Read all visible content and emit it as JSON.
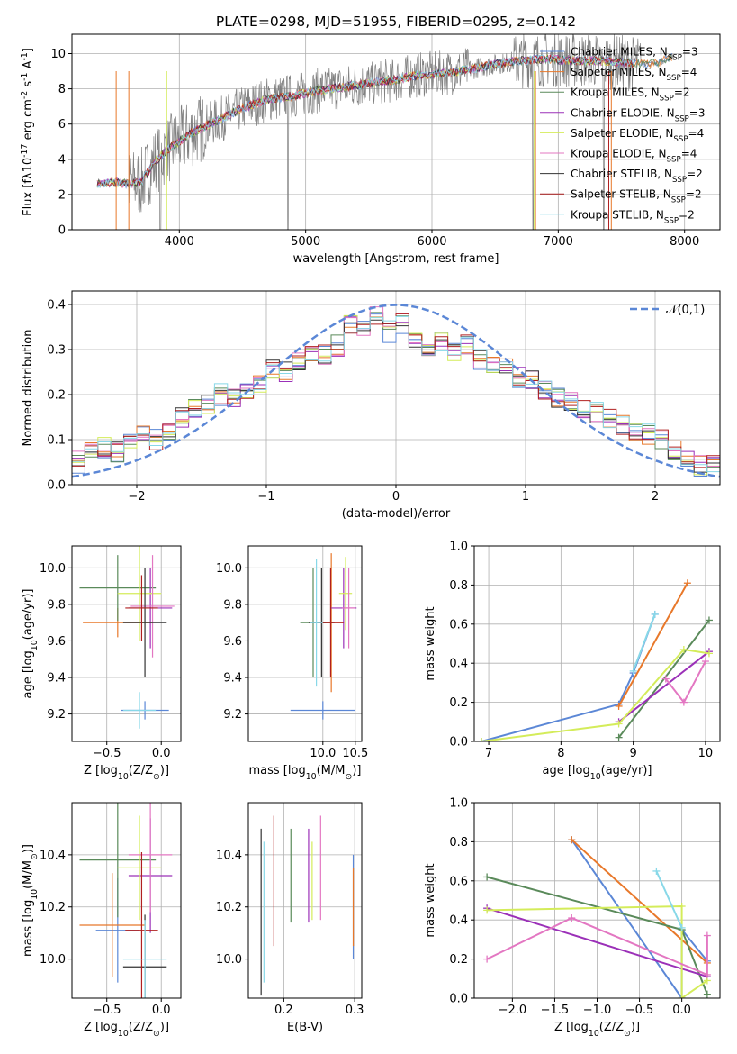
{
  "colors": {
    "blue": "#5b87d6",
    "orange": "#e8782a",
    "green": "#5a8a5a",
    "purple": "#9b30b8",
    "lime": "#d4ec5a",
    "pink": "#e377c2",
    "black": "#333333",
    "red": "#b02020",
    "cyan": "#88d8e8",
    "grey": "#808080",
    "grid": "#b0b0b0"
  },
  "chart_data": [
    {
      "id": "spectrum",
      "type": "line",
      "title": "PLATE=0298, MJD=51955, FIBERID=0295, z=0.142",
      "xlabel": "wavelength [Angstrom, rest frame]",
      "ylabel": "Flux [f$\\lambda$10$^{-17}$ erg cm$^{-2}$ s$^{-1}$ A$^{-1}$]",
      "xlim": [
        3150,
        8280
      ],
      "ylim": [
        0,
        11.1
      ],
      "xticks": [
        "4000",
        "5000",
        "6000",
        "7000",
        "8000"
      ],
      "yticks": [
        "0",
        "2",
        "4",
        "6",
        "8",
        "10"
      ],
      "xtick_values": [
        4000,
        5000,
        6000,
        7000,
        8000
      ],
      "ytick_values": [
        0,
        2,
        4,
        6,
        8,
        10
      ],
      "legend_position": "top-right",
      "series": [
        {
          "name": "Chabrier MILES, N$_{SSP}$=3",
          "color": "#5b87d6"
        },
        {
          "name": "Salpeter MILES, N$_{SSP}$=4",
          "color": "#e8782a"
        },
        {
          "name": "Kroupa MILES, N$_{SSP}$=2",
          "color": "#5a8a5a"
        },
        {
          "name": "Chabrier ELODIE, N$_{SSP}$=3",
          "color": "#9b30b8"
        },
        {
          "name": "Salpeter ELODIE, N$_{SSP}$=4",
          "color": "#d4ec5a"
        },
        {
          "name": "Kroupa ELODIE, N$_{SSP}$=4",
          "color": "#e377c2"
        },
        {
          "name": "Chabrier STELIB, N$_{SSP}$=2",
          "color": "#333333"
        },
        {
          "name": "Salpeter STELIB, N$_{SSP}$=2",
          "color": "#b02020"
        },
        {
          "name": "Kroupa STELIB, N$_{SSP}$=2",
          "color": "#88d8e8"
        }
      ],
      "continuum": {
        "x": [
          3350,
          3500,
          3600,
          3700,
          3800,
          3900,
          4000,
          4100,
          4300,
          4500,
          4700,
          4900,
          5100,
          5300,
          5500,
          5700,
          5900,
          6100,
          6300,
          6500,
          6700,
          6900,
          7100,
          7300,
          7500,
          7700,
          7800,
          7900
        ],
        "y": [
          2.6,
          2.7,
          2.6,
          2.7,
          3.8,
          4.5,
          5.0,
          5.5,
          6.2,
          6.9,
          7.4,
          7.6,
          7.9,
          8.1,
          8.3,
          8.5,
          8.8,
          8.9,
          9.1,
          9.4,
          9.6,
          9.7,
          9.6,
          9.6,
          9.5,
          9.4,
          9.5,
          9.8
        ]
      }
    },
    {
      "id": "residuals",
      "type": "histogram",
      "xlabel": "(data-model)/error",
      "ylabel": "Normed distribution",
      "xlim": [
        -2.5,
        2.5
      ],
      "ylim": [
        0,
        0.43
      ],
      "xticks": [
        "−2",
        "−1",
        "0",
        "1",
        "2"
      ],
      "yticks": [
        "0.0",
        "0.1",
        "0.2",
        "0.3",
        "0.4"
      ],
      "xtick_values": [
        -2,
        -1,
        0,
        1,
        2
      ],
      "ytick_values": [
        0,
        0.1,
        0.2,
        0.3,
        0.4
      ],
      "legend": "$\\mathcal{N}(0,1)$",
      "legend_position": "top-right",
      "curve": "gaussian mean 0 sigma 1",
      "bin_edges": [
        -2.5,
        -2.4,
        -2.3,
        -2.2,
        -2.1,
        -2.0,
        -1.9,
        -1.8,
        -1.7,
        -1.6,
        -1.5,
        -1.4,
        -1.3,
        -1.2,
        -1.1,
        -1.0,
        -0.9,
        -0.8,
        -0.7,
        -0.6,
        -0.5,
        -0.4,
        -0.3,
        -0.2,
        -0.1,
        0.0,
        0.1,
        0.2,
        0.3,
        0.4,
        0.5,
        0.6,
        0.7,
        0.8,
        0.9,
        1.0,
        1.1,
        1.2,
        1.3,
        1.4,
        1.5,
        1.6,
        1.7,
        1.8,
        1.9,
        2.0,
        2.1,
        2.2,
        2.3,
        2.4,
        2.5
      ],
      "heights": [
        0.05,
        0.07,
        0.08,
        0.07,
        0.09,
        0.11,
        0.1,
        0.12,
        0.15,
        0.17,
        0.18,
        0.2,
        0.19,
        0.21,
        0.23,
        0.26,
        0.25,
        0.28,
        0.3,
        0.29,
        0.31,
        0.36,
        0.35,
        0.37,
        0.34,
        0.36,
        0.33,
        0.31,
        0.32,
        0.3,
        0.31,
        0.28,
        0.26,
        0.27,
        0.24,
        0.23,
        0.21,
        0.19,
        0.18,
        0.17,
        0.16,
        0.15,
        0.13,
        0.12,
        0.11,
        0.1,
        0.08,
        0.06,
        0.04,
        0.04,
        0.05
      ]
    },
    {
      "id": "age-vs-Z",
      "type": "errorbar",
      "xlabel": "Z [log$_{10}$(Z/Z$_\\odot$)]",
      "ylabel": "age  [log$_{10}$($age/yr$)]",
      "xlim": [
        -0.82,
        0.18
      ],
      "ylim": [
        9.05,
        10.12
      ],
      "xticks": [
        "−0.5",
        "0.0"
      ],
      "xtick_values": [
        -0.5,
        0.0
      ],
      "yticks": [
        "9.2",
        "9.4",
        "9.6",
        "9.8",
        "10.0"
      ],
      "ytick_values": [
        9.2,
        9.4,
        9.6,
        9.8,
        10.0
      ],
      "points": [
        {
          "color": "#5b87d6",
          "x": -0.15,
          "y": 9.22,
          "xerr": 0.22,
          "yerr": 0.05
        },
        {
          "color": "#e8782a",
          "x": -0.4,
          "y": 9.7,
          "xerr": 0.32,
          "yerr": 0.08
        },
        {
          "color": "#5a8a5a",
          "x": -0.4,
          "y": 9.89,
          "xerr": 0.35,
          "yerr": 0.18
        },
        {
          "color": "#9b30b8",
          "x": -0.1,
          "y": 9.78,
          "xerr": 0.2,
          "yerr": 0.22
        },
        {
          "color": "#d4ec5a",
          "x": -0.2,
          "y": 9.86,
          "xerr": 0.2,
          "yerr": 0.26
        },
        {
          "color": "#e377c2",
          "x": -0.08,
          "y": 9.79,
          "xerr": 0.2,
          "yerr": 0.28
        },
        {
          "color": "#333333",
          "x": -0.15,
          "y": 9.7,
          "xerr": 0.2,
          "yerr": 0.3
        },
        {
          "color": "#b02020",
          "x": -0.18,
          "y": 9.78,
          "xerr": 0.15,
          "yerr": 0.18
        },
        {
          "color": "#88d8e8",
          "x": -0.2,
          "y": 9.22,
          "xerr": 0.15,
          "yerr": 0.1
        }
      ]
    },
    {
      "id": "age-vs-mass",
      "type": "errorbar",
      "xlabel": "mass [log$_{10}$($M/M_\\odot$)]",
      "ylabel": "",
      "xlim": [
        8.85,
        10.6
      ],
      "ylim": [
        9.05,
        10.12
      ],
      "xticks": [
        "10.0",
        "10.5"
      ],
      "xtick_values": [
        10.0,
        10.5
      ],
      "yticks": [
        "9.2",
        "9.4",
        "9.6",
        "9.8",
        "10.0"
      ],
      "ytick_values": [
        9.2,
        9.4,
        9.6,
        9.8,
        10.0
      ],
      "points": [
        {
          "color": "#5b87d6",
          "x": 10.0,
          "y": 9.22,
          "xerr": 0.5,
          "yerr": 0.05
        },
        {
          "color": "#e8782a",
          "x": 10.13,
          "y": 9.7,
          "xerr": 0.2,
          "yerr": 0.38
        },
        {
          "color": "#5a8a5a",
          "x": 9.85,
          "y": 9.7,
          "xerr": 0.2,
          "yerr": 0.3
        },
        {
          "color": "#9b30b8",
          "x": 10.32,
          "y": 9.78,
          "xerr": 0.2,
          "yerr": 0.22
        },
        {
          "color": "#d4ec5a",
          "x": 10.35,
          "y": 9.86,
          "xerr": 0.1,
          "yerr": 0.2
        },
        {
          "color": "#e377c2",
          "x": 10.4,
          "y": 9.78,
          "xerr": 0.1,
          "yerr": 0.22
        },
        {
          "color": "#333333",
          "x": 9.98,
          "y": 9.7,
          "xerr": 0.2,
          "yerr": 0.3
        },
        {
          "color": "#b02020",
          "x": 10.12,
          "y": 9.7,
          "xerr": 0.2,
          "yerr": 0.3
        },
        {
          "color": "#88d8e8",
          "x": 9.9,
          "y": 9.7,
          "xerr": 0.1,
          "yerr": 0.35
        }
      ]
    },
    {
      "id": "massweight-vs-age",
      "type": "line",
      "xlabel": "age  [log$_{10}$($age/yr$)]",
      "ylabel": "mass weight",
      "xlim": [
        6.8,
        10.2
      ],
      "ylim": [
        0,
        1.0
      ],
      "xticks": [
        "7",
        "8",
        "9",
        "10"
      ],
      "xtick_values": [
        7,
        8,
        9,
        10
      ],
      "yticks": [
        "0.0",
        "0.2",
        "0.4",
        "0.6",
        "0.8",
        "1.0"
      ],
      "ytick_values": [
        0,
        0.2,
        0.4,
        0.6,
        0.8,
        1.0
      ],
      "series": [
        {
          "color": "#5b87d6",
          "x": [
            6.9,
            8.8,
            9.0,
            9.3
          ],
          "y": [
            0.0,
            0.19,
            0.35,
            0.65
          ]
        },
        {
          "color": "#e8782a",
          "x": [
            8.8,
            9.75
          ],
          "y": [
            0.18,
            0.81
          ]
        },
        {
          "color": "#5a8a5a",
          "x": [
            8.8,
            10.05
          ],
          "y": [
            0.02,
            0.62
          ]
        },
        {
          "color": "#9b30b8",
          "x": [
            8.8,
            10.05
          ],
          "y": [
            0.1,
            0.46
          ]
        },
        {
          "color": "#d4ec5a",
          "x": [
            6.9,
            8.8,
            9.7,
            10.05
          ],
          "y": [
            0.0,
            0.09,
            0.47,
            0.45
          ]
        },
        {
          "color": "#e377c2",
          "x": [
            9.45,
            9.7,
            10.0
          ],
          "y": [
            0.32,
            0.2,
            0.41
          ]
        },
        {
          "color": "#88d8e8",
          "x": [
            9.0,
            9.3
          ],
          "y": [
            0.36,
            0.65
          ]
        }
      ]
    },
    {
      "id": "mass-vs-Z",
      "type": "errorbar",
      "xlabel": "Z [log$_{10}$(Z/Z$_\\odot$)]",
      "ylabel": "mass [log$_{10}$($M/M_\\odot$)]",
      "xlim": [
        -0.82,
        0.18
      ],
      "ylim": [
        9.85,
        10.6
      ],
      "xticks": [
        "−0.5",
        "0.0"
      ],
      "xtick_values": [
        -0.5,
        0.0
      ],
      "yticks": [
        "10.0",
        "10.2",
        "10.4"
      ],
      "ytick_values": [
        10.0,
        10.2,
        10.4
      ],
      "points": [
        {
          "color": "#5b87d6",
          "x": -0.4,
          "y": 10.11,
          "xerr": 0.2,
          "yerr": 0.2
        },
        {
          "color": "#e8782a",
          "x": -0.45,
          "y": 10.13,
          "xerr": 0.3,
          "yerr": 0.2
        },
        {
          "color": "#5a8a5a",
          "x": -0.4,
          "y": 10.38,
          "xerr": 0.35,
          "yerr": 0.22
        },
        {
          "color": "#9b30b8",
          "x": -0.1,
          "y": 10.32,
          "xerr": 0.2,
          "yerr": 0.22
        },
        {
          "color": "#d4ec5a",
          "x": -0.2,
          "y": 10.35,
          "xerr": 0.2,
          "yerr": 0.2
        },
        {
          "color": "#e377c2",
          "x": -0.1,
          "y": 10.4,
          "xerr": 0.2,
          "yerr": 0.22
        },
        {
          "color": "#333333",
          "x": -0.15,
          "y": 9.97,
          "xerr": 0.2,
          "yerr": 0.2
        },
        {
          "color": "#b02020",
          "x": -0.18,
          "y": 10.11,
          "xerr": 0.15,
          "yerr": 0.3
        },
        {
          "color": "#88d8e8",
          "x": -0.15,
          "y": 10.0,
          "xerr": 0.2,
          "yerr": 0.15
        }
      ]
    },
    {
      "id": "mass-vs-EBV",
      "type": "errorbar",
      "xlabel": "E(B-V)",
      "ylabel": "",
      "xlim": [
        0.15,
        0.31
      ],
      "ylim": [
        9.85,
        10.6
      ],
      "xticks": [
        "0.2",
        "0.3"
      ],
      "xtick_values": [
        0.2,
        0.3
      ],
      "yticks": [
        "10.0",
        "10.2",
        "10.4"
      ],
      "ytick_values": [
        10.0,
        10.2,
        10.4
      ],
      "points": [
        {
          "color": "#5b87d6",
          "x": 0.298,
          "y": 10.2,
          "xerr": 0,
          "yerr": 0.2
        },
        {
          "color": "#e8782a",
          "x": 0.298,
          "y": 10.2,
          "xerr": 0,
          "yerr": 0.15
        },
        {
          "color": "#5a8a5a",
          "x": 0.21,
          "y": 10.32,
          "xerr": 0,
          "yerr": 0.18
        },
        {
          "color": "#9b30b8",
          "x": 0.235,
          "y": 10.32,
          "xerr": 0,
          "yerr": 0.18
        },
        {
          "color": "#d4ec5a",
          "x": 0.24,
          "y": 10.3,
          "xerr": 0,
          "yerr": 0.15
        },
        {
          "color": "#e377c2",
          "x": 0.252,
          "y": 10.35,
          "xerr": 0,
          "yerr": 0.2
        },
        {
          "color": "#333333",
          "x": 0.168,
          "y": 10.18,
          "xerr": 0,
          "yerr": 0.32
        },
        {
          "color": "#b02020",
          "x": 0.186,
          "y": 10.3,
          "xerr": 0,
          "yerr": 0.25
        },
        {
          "color": "#88d8e8",
          "x": 0.172,
          "y": 10.18,
          "xerr": 0,
          "yerr": 0.27
        }
      ]
    },
    {
      "id": "massweight-vs-Z",
      "type": "line",
      "xlabel": "Z [log$_{10}$(Z/Z$_\\odot$)]",
      "ylabel": "mass weight",
      "xlim": [
        -2.45,
        0.45
      ],
      "ylim": [
        0,
        1.0
      ],
      "xticks": [
        "−2.0",
        "−1.5",
        "−1.0",
        "−0.5",
        "0.0"
      ],
      "xtick_values": [
        -2.0,
        -1.5,
        -1.0,
        -0.5,
        0.0
      ],
      "yticks": [
        "0.0",
        "0.2",
        "0.4",
        "0.6",
        "0.8",
        "1.0"
      ],
      "ytick_values": [
        0,
        0.2,
        0.4,
        0.6,
        0.8,
        1.0
      ],
      "series": [
        {
          "color": "#5b87d6",
          "x": [
            -1.3,
            0.0,
            0.0,
            0.3
          ],
          "y": [
            0.81,
            0.0,
            0.35,
            0.19
          ]
        },
        {
          "color": "#e8782a",
          "x": [
            -1.3,
            0.3
          ],
          "y": [
            0.81,
            0.18
          ]
        },
        {
          "color": "#5a8a5a",
          "x": [
            -2.3,
            0.0,
            0.3
          ],
          "y": [
            0.62,
            0.35,
            0.02
          ]
        },
        {
          "color": "#9b30b8",
          "x": [
            -2.3,
            0.3
          ],
          "y": [
            0.46,
            0.11
          ]
        },
        {
          "color": "#d4ec5a",
          "x": [
            -2.3,
            0.0,
            0.0,
            0.3
          ],
          "y": [
            0.45,
            0.47,
            0.0,
            0.09
          ]
        },
        {
          "color": "#e377c2",
          "x": [
            -2.3,
            -1.3,
            0.3,
            0.3
          ],
          "y": [
            0.2,
            0.41,
            0.12,
            0.32
          ]
        },
        {
          "color": "#88d8e8",
          "x": [
            -0.3,
            0.0
          ],
          "y": [
            0.65,
            0.36
          ]
        }
      ]
    }
  ]
}
